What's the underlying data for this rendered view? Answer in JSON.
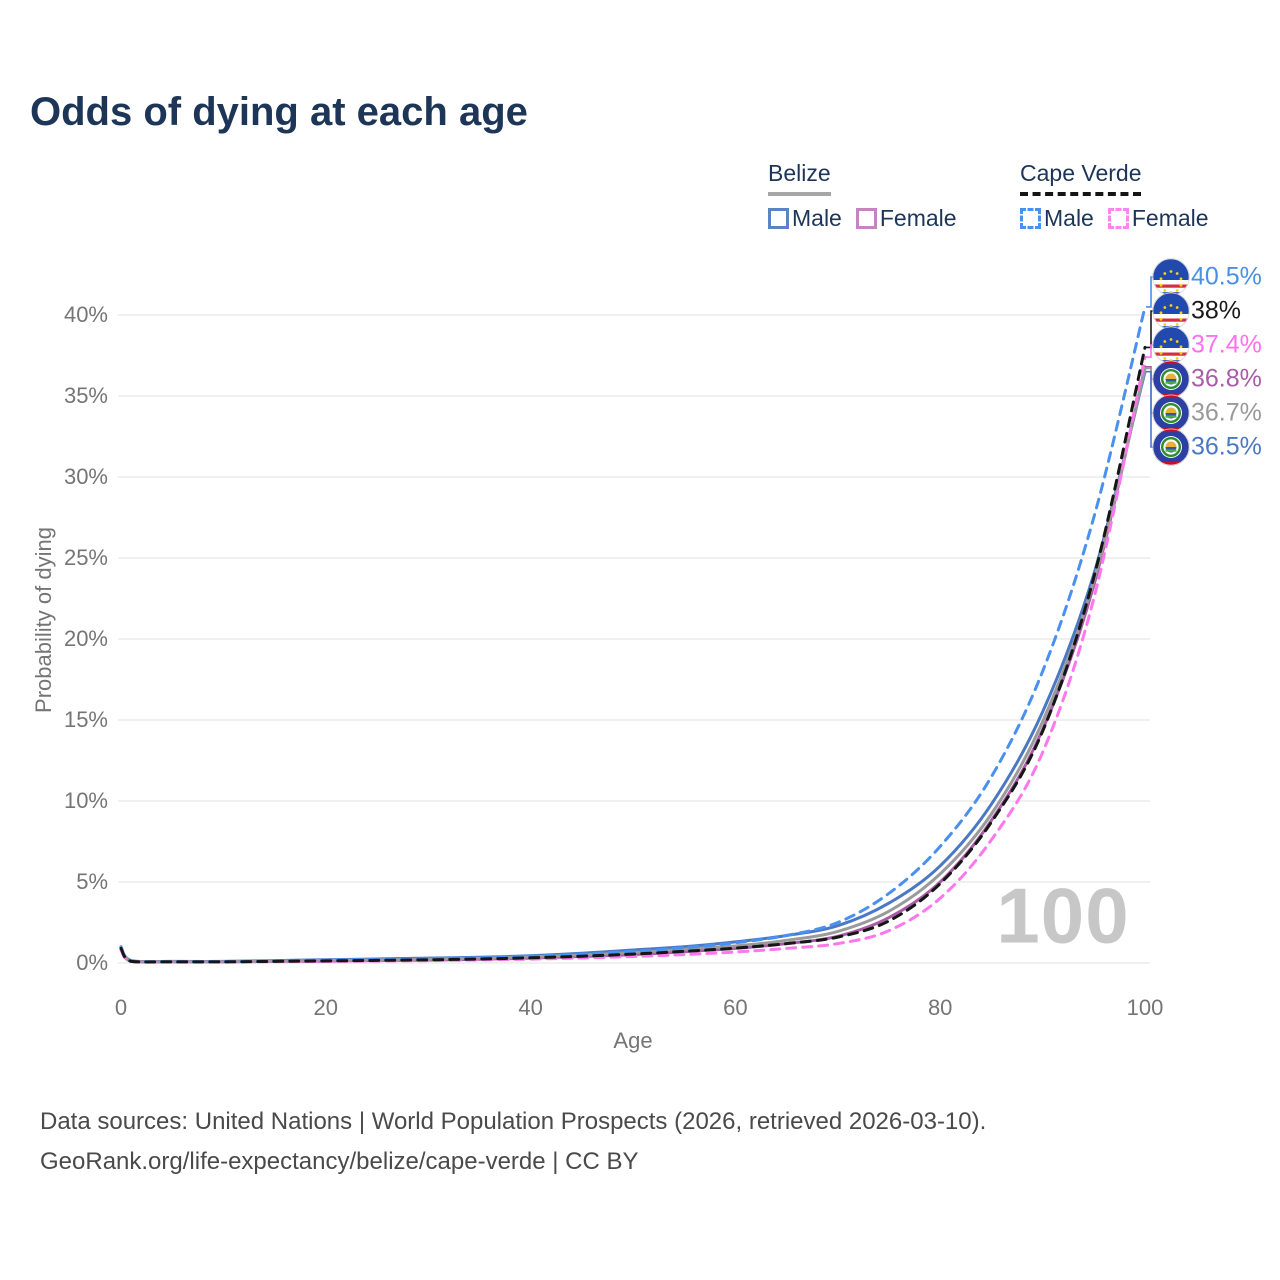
{
  "title": "Odds of dying at each age",
  "legend": {
    "groups": [
      {
        "label": "Belize",
        "line_style": "solid",
        "items": [
          {
            "label": "Male",
            "color": "#5b84c4",
            "dashed": false
          },
          {
            "label": "Female",
            "color": "#c583c1",
            "dashed": false
          }
        ]
      },
      {
        "label": "Cape Verde",
        "line_style": "dashed",
        "items": [
          {
            "label": "Male",
            "color": "#4a90f0",
            "dashed": true
          },
          {
            "label": "Female",
            "color": "#ff85ee",
            "dashed": true
          }
        ]
      }
    ]
  },
  "chart_data": {
    "type": "line",
    "title": "Odds of dying at each age",
    "xlabel": "Age",
    "ylabel": "Probability of dying",
    "x_ticks": [
      "0",
      "20",
      "40",
      "60",
      "80",
      "100"
    ],
    "x_tick_values": [
      0,
      20,
      40,
      60,
      80,
      100
    ],
    "y_ticks": [
      "0%",
      "5%",
      "10%",
      "15%",
      "20%",
      "25%",
      "30%",
      "35%",
      "40%"
    ],
    "y_tick_values": [
      0,
      5,
      10,
      15,
      20,
      25,
      30,
      35,
      40
    ],
    "xlim": [
      0,
      100
    ],
    "ylim_pct": [
      0,
      42
    ],
    "grid": "horizontal",
    "x": [
      0,
      1,
      5,
      10,
      15,
      20,
      25,
      30,
      35,
      40,
      45,
      50,
      55,
      60,
      65,
      70,
      75,
      80,
      85,
      90,
      95,
      100
    ],
    "series": [
      {
        "name": "Belize Male",
        "country": "Belize",
        "sex": "Male",
        "style": "solid",
        "color": "#4a78c5",
        "values": [
          1.0,
          0.15,
          0.1,
          0.1,
          0.15,
          0.2,
          0.25,
          0.3,
          0.35,
          0.45,
          0.6,
          0.8,
          1.0,
          1.3,
          1.7,
          2.3,
          3.7,
          6.0,
          9.8,
          15.5,
          24.0,
          36.5
        ]
      },
      {
        "name": "Belize Female",
        "country": "Belize",
        "sex": "Female",
        "style": "solid",
        "color": "#a95ca6",
        "values": [
          0.85,
          0.1,
          0.07,
          0.07,
          0.1,
          0.12,
          0.15,
          0.18,
          0.23,
          0.3,
          0.4,
          0.52,
          0.7,
          0.9,
          1.2,
          1.65,
          2.8,
          5.0,
          8.8,
          14.4,
          23.3,
          36.8
        ]
      },
      {
        "name": "Belize Total",
        "country": "Belize",
        "sex": "Total",
        "style": "solid",
        "color": "#9a9a9a",
        "values": [
          0.95,
          0.12,
          0.08,
          0.08,
          0.12,
          0.16,
          0.2,
          0.24,
          0.3,
          0.38,
          0.5,
          0.65,
          0.85,
          1.05,
          1.4,
          1.95,
          3.2,
          5.5,
          9.2,
          14.9,
          23.6,
          36.7
        ]
      },
      {
        "name": "Cape Verde Male",
        "country": "Cape Verde",
        "sex": "Male",
        "style": "dashed",
        "color": "#4a90f0",
        "values": [
          0.95,
          0.12,
          0.08,
          0.09,
          0.13,
          0.17,
          0.22,
          0.27,
          0.33,
          0.42,
          0.55,
          0.72,
          0.95,
          1.25,
          1.7,
          2.5,
          4.3,
          7.2,
          11.5,
          18.0,
          27.5,
          40.5
        ]
      },
      {
        "name": "Cape Verde Female",
        "country": "Cape Verde",
        "sex": "Female",
        "style": "dashed",
        "color": "#ff77ee",
        "values": [
          0.8,
          0.09,
          0.06,
          0.06,
          0.08,
          0.1,
          0.12,
          0.15,
          0.19,
          0.24,
          0.31,
          0.4,
          0.52,
          0.68,
          0.9,
          1.2,
          2.0,
          4.0,
          7.6,
          13.0,
          22.5,
          37.4
        ]
      },
      {
        "name": "Cape Verde Total",
        "country": "Cape Verde",
        "sex": "Total",
        "style": "dashed",
        "color": "#161616",
        "values": [
          0.9,
          0.1,
          0.07,
          0.07,
          0.1,
          0.13,
          0.16,
          0.2,
          0.25,
          0.32,
          0.42,
          0.55,
          0.72,
          0.92,
          1.2,
          1.6,
          2.6,
          4.9,
          8.7,
          14.3,
          23.8,
          38.0
        ]
      }
    ],
    "end_labels": [
      {
        "value": "40.5%",
        "pct": 40.5,
        "color": "#4a90e2",
        "flag": "cape-verde-flag-icon",
        "series": "Cape Verde Male"
      },
      {
        "value": "38%",
        "pct": 38.0,
        "color": "#1a1a1a",
        "flag": "cape-verde-flag-icon",
        "series": "Cape Verde Total"
      },
      {
        "value": "37.4%",
        "pct": 37.4,
        "color": "#ff6ff0",
        "flag": "cape-verde-flag-icon",
        "series": "Cape Verde Female"
      },
      {
        "value": "36.8%",
        "pct": 36.8,
        "color": "#a95ca6",
        "flag": "belize-flag-icon",
        "series": "Belize Female"
      },
      {
        "value": "36.7%",
        "pct": 36.7,
        "color": "#9a9a9a",
        "flag": "belize-flag-icon",
        "series": "Belize Total"
      },
      {
        "value": "36.5%",
        "pct": 36.5,
        "color": "#4a78c5",
        "flag": "belize-flag-icon",
        "series": "Belize Male"
      }
    ]
  },
  "watermark": "100",
  "footer": {
    "line1": "Data sources: United Nations | World Population Prospects (2026, retrieved 2026-03-10).",
    "line2": "GeoRank.org/life-expectancy/belize/cape-verde | CC BY"
  }
}
